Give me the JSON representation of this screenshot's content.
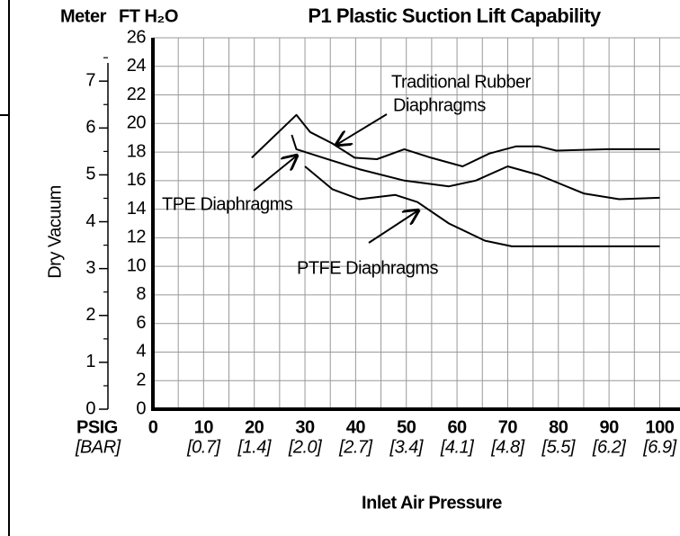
{
  "chart_data": {
    "type": "line",
    "title": "P1 Plastic Suction Lift Capability",
    "y_label": "FT H₂O",
    "y2_label": "Meter",
    "y_axis_title": "Dry Vacuum",
    "x_label": "Inlet Air Pressure",
    "x_unit": "PSIG",
    "x2_unit": "[BAR]",
    "xlim": [
      0,
      104
    ],
    "xticks": [
      0,
      10,
      20,
      30,
      40,
      50,
      60,
      70,
      80,
      90,
      100
    ],
    "xminorticks": [
      5,
      15,
      25,
      35,
      45,
      55,
      65,
      75,
      85,
      95
    ],
    "x2ticks": [
      {
        "value": 10,
        "label": "[0.7]"
      },
      {
        "value": 20,
        "label": "[1.4]"
      },
      {
        "value": 30,
        "label": "[2.0]"
      },
      {
        "value": 40,
        "label": "[2.7]"
      },
      {
        "value": 50,
        "label": "[3.4]"
      },
      {
        "value": 60,
        "label": "[4.1]"
      },
      {
        "value": 70,
        "label": "[4.8]"
      },
      {
        "value": 80,
        "label": "[5.5]"
      },
      {
        "value": 90,
        "label": "[6.2]"
      },
      {
        "value": 100,
        "label": "[6.9]"
      }
    ],
    "ylim": [
      0,
      26
    ],
    "yticks": [
      0,
      2,
      4,
      6,
      8,
      10,
      12,
      14,
      16,
      18,
      20,
      22,
      24,
      26
    ],
    "y2lim": [
      0,
      7.925
    ],
    "y2ticks": [
      0,
      1,
      2,
      3,
      4,
      5,
      6,
      7
    ],
    "y2minorticks": [
      0.5,
      1.5,
      2.5,
      3.5,
      4.5,
      5.5,
      6.5,
      7.5
    ],
    "grid": true,
    "series": [
      {
        "name": "Traditional Rubber Diaphragms",
        "color": "#000000",
        "x": [
          19.5,
          28.3,
          31,
          35.4,
          39.8,
          44.2,
          49.6,
          54.9,
          61.1,
          66.4,
          71.7,
          76.1,
          79.6,
          90,
          100
        ],
        "values": [
          17.6,
          20.6,
          19.4,
          18.6,
          17.6,
          17.5,
          18.2,
          17.6,
          17.0,
          17.9,
          18.4,
          18.4,
          18.1,
          18.2,
          18.2
        ]
      },
      {
        "name": "TPE Diaphragms",
        "color": "#000000",
        "x": [
          27.4,
          28.3,
          33.6,
          40.7,
          49.6,
          58.4,
          63.7,
          70,
          76.1,
          85,
          92,
          100
        ],
        "values": [
          19.2,
          18.2,
          17.6,
          16.8,
          16.0,
          15.6,
          16.0,
          17.0,
          16.4,
          15.1,
          14.7,
          14.8
        ]
      },
      {
        "name": "PTFE Diaphragms",
        "color": "#000000",
        "x": [
          30,
          35.4,
          40.7,
          47.8,
          52.2,
          58.4,
          65.5,
          70.8,
          85,
          100
        ],
        "values": [
          17.0,
          15.4,
          14.7,
          15.0,
          14.5,
          13.0,
          11.8,
          11.4,
          11.4,
          11.4
        ]
      }
    ],
    "annotations": [
      "Traditional Rubber",
      "Diaphragms",
      "TPE Diaphragms",
      "PTFE   Diaphragms"
    ]
  }
}
